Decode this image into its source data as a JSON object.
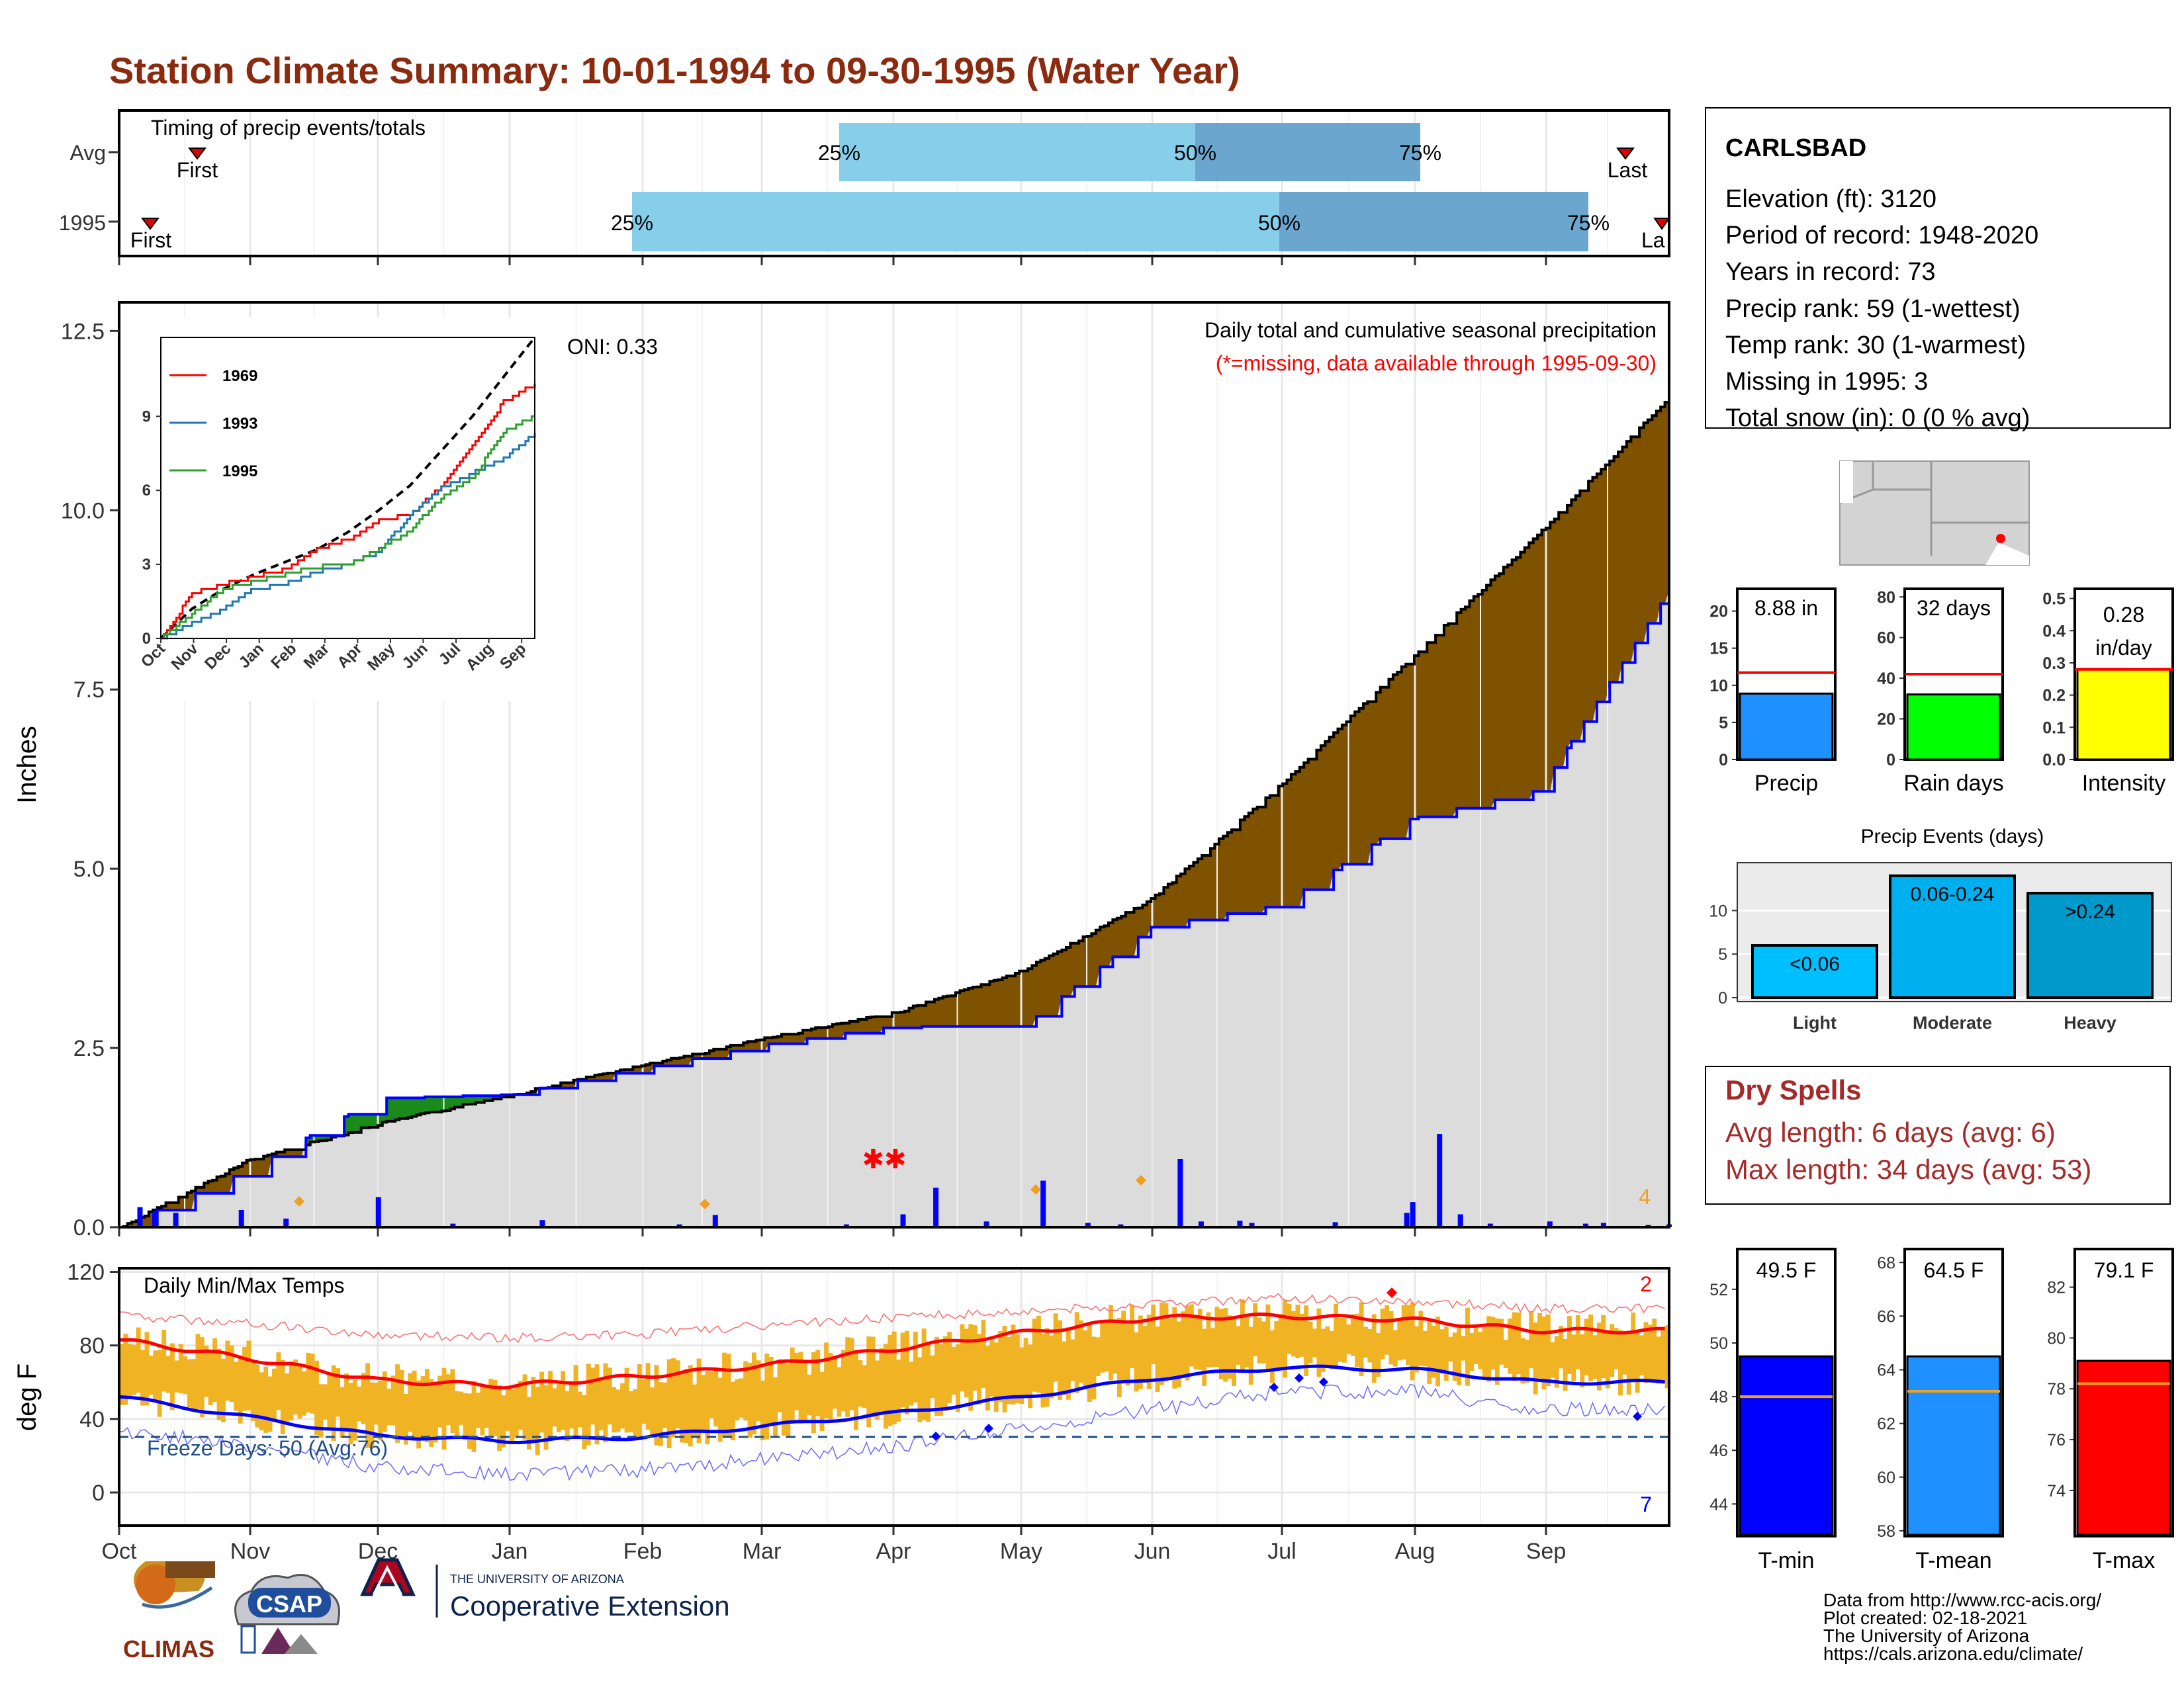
{
  "title": "Station Climate Summary: 10-01-1994 to 09-30-1995 (Water Year)",
  "colors": {
    "title": "#8b2a0e",
    "q_light": "#87ceeb",
    "q_dark": "#6ba6cf",
    "cumulative_fill": "#7f5200",
    "green_fill": "#1a8a1a",
    "avg_line": "#0000ff",
    "missing": "#ff0000",
    "temp_bar": "#f0b323",
    "max_line": "#ff0000",
    "min_line": "#0000ff",
    "freeze_line": "#1f4e8c",
    "dry_title": "#a52a2a"
  },
  "months": [
    "Oct",
    "Nov",
    "Dec",
    "Jan",
    "Feb",
    "Mar",
    "Apr",
    "May",
    "Jun",
    "Jul",
    "Aug",
    "Sep"
  ],
  "timing": {
    "label": "Timing of precip events/totals",
    "rows": [
      {
        "name": "Avg",
        "first": "First",
        "last": "Last",
        "q25": "25%",
        "q50": "50%",
        "q75": "75%"
      },
      {
        "name": "1995",
        "first": "First",
        "last": "La",
        "q25": "25%",
        "q50": "50%",
        "q75": "75%"
      }
    ]
  },
  "precip_panel": {
    "ylabel": "Inches",
    "yticks": [
      "0.0",
      "2.5",
      "5.0",
      "7.5",
      "10.0",
      "12.5"
    ],
    "oni": "ONI: 0.33",
    "note1": "Daily total and cumulative seasonal precipitation",
    "note2": "(*=missing, data available through 1995-09-30)",
    "count_label": "4"
  },
  "inset": {
    "yticks": [
      "0",
      "3",
      "6",
      "9"
    ],
    "months": [
      "Oct",
      "Nov",
      "Dec",
      "Jan",
      "Feb",
      "Mar",
      "Apr",
      "May",
      "Jun",
      "Jul",
      "Aug",
      "Sep"
    ],
    "legend": [
      {
        "name": "1969",
        "color": "#ff0000"
      },
      {
        "name": "1993",
        "color": "#1f77b4"
      },
      {
        "name": "1995",
        "color": "#2ca02c"
      }
    ]
  },
  "temp_panel": {
    "ylabel": "deg F",
    "label": "Daily Min/Max Temps",
    "yticks": [
      "0",
      "40",
      "80",
      "120"
    ],
    "freeze": "Freeze Days: 50 (Avg:76)",
    "count_max": "2",
    "count_min": "7"
  },
  "station": {
    "name": "CARLSBAD",
    "lines": [
      "Elevation (ft): 3120",
      "Period of record: 1948-2020",
      "Years in record: 73",
      "Precip rank: 59 (1-wettest)",
      "Temp rank: 30 (1-warmest)",
      "Missing in 1995: 3",
      "Total snow (in): 0 (0 % avg)"
    ]
  },
  "stat_bars": [
    {
      "label": "Precip",
      "value_text": "8.88 in",
      "value": 8.88,
      "avg": 11.7,
      "ymax": 23,
      "ticks": [
        "0",
        "5",
        "10",
        "15",
        "20"
      ],
      "tickvals": [
        0,
        5,
        10,
        15,
        20
      ],
      "color": "#1e90ff"
    },
    {
      "label": "Rain days",
      "value_text": "32 days",
      "value": 32,
      "avg": 42,
      "ymax": 84,
      "ticks": [
        "0",
        "20",
        "40",
        "60",
        "80"
      ],
      "tickvals": [
        0,
        20,
        40,
        60,
        80
      ],
      "color": "#00ff00"
    },
    {
      "label": "Intensity",
      "value_text": "0.28 in/day",
      "value": 0.28,
      "avg": 0.28,
      "ymax": 0.53,
      "ticks": [
        "0.0",
        "0.1",
        "0.2",
        "0.3",
        "0.4",
        "0.5"
      ],
      "tickvals": [
        0,
        0.1,
        0.2,
        0.3,
        0.4,
        0.5
      ],
      "color": "#ffff00"
    }
  ],
  "events": {
    "title": "Precip Events (days)",
    "yticks": [
      "0",
      "5",
      "10"
    ],
    "bars": [
      {
        "label": "Light",
        "range": "<0.06",
        "value": 6,
        "color": "#00bfff"
      },
      {
        "label": "Moderate",
        "range": "0.06-0.24",
        "value": 14,
        "color": "#00b0ee"
      },
      {
        "label": "Heavy",
        "range": ">0.24",
        "value": 12,
        "color": "#0099cc"
      }
    ]
  },
  "dry": {
    "title": "Dry Spells",
    "avg": "Avg length: 6 days (avg: 6)",
    "max": "Max length: 34 days (avg: 53)"
  },
  "temp_bars": [
    {
      "label": "T-min",
      "value_text": "49.5 F",
      "value": 49.5,
      "avg": 48.0,
      "ymin": 42.8,
      "ymax": 53.5,
      "ticks": [
        "44",
        "46",
        "48",
        "50",
        "52"
      ],
      "tickvals": [
        44,
        46,
        48,
        50,
        52
      ],
      "color": "#0000ff"
    },
    {
      "label": "T-mean",
      "value_text": "64.5 F",
      "value": 64.5,
      "avg": 63.2,
      "ymin": 57.8,
      "ymax": 68.5,
      "ticks": [
        "58",
        "60",
        "62",
        "64",
        "66",
        "68"
      ],
      "tickvals": [
        58,
        60,
        62,
        64,
        66,
        68
      ],
      "color": "#1e90ff"
    },
    {
      "label": "T-max",
      "value_text": "79.1 F",
      "value": 79.1,
      "avg": 78.2,
      "ymin": 72.2,
      "ymax": 83.5,
      "ticks": [
        "74",
        "76",
        "78",
        "80",
        "82"
      ],
      "tickvals": [
        74,
        76,
        78,
        80,
        82
      ],
      "color": "#ff0000"
    }
  ],
  "footer": {
    "lines": [
      "Data from http://www.rcc-acis.org/",
      "Plot created: 02-18-2021",
      "The University of Arizona",
      "https://cals.arizona.edu/climate/"
    ],
    "climas": "CLIMAS",
    "csap": "CSAP",
    "ua_small": "THE UNIVERSITY OF ARIZONA",
    "ua_big": "Cooperative Extension"
  },
  "chart_data": [
    {
      "type": "area",
      "name": "cumulative-precip",
      "x": [
        "Oct",
        "Nov",
        "Dec",
        "Jan",
        "Feb",
        "Mar",
        "Apr",
        "May",
        "Jun",
        "Jul",
        "Aug",
        "Sep",
        "Sep-end"
      ],
      "series": [
        {
          "values": [
            0.0,
            0.95,
            1.45,
            1.85,
            2.25,
            2.65,
            3.0,
            3.6,
            4.6,
            6.2,
            7.95,
            9.7,
            11.6
          ]
        },
        {
          "values": [
            0.0,
            0.8,
            1.8,
            1.85,
            2.2,
            2.55,
            2.8,
            2.8,
            4.2,
            4.5,
            5.7,
            6.1,
            8.88
          ]
        }
      ],
      "ylim": [
        0,
        12.9
      ]
    },
    {
      "type": "bar",
      "name": "daily-precip",
      "x": [
        7,
        12,
        19,
        41,
        56,
        87,
        112,
        142,
        188,
        200,
        244,
        263,
        274,
        291,
        310,
        325,
        336,
        356,
        363,
        376,
        380,
        408,
        432,
        434,
        443,
        450,
        460,
        480,
        492,
        498,
        513,
        520
      ],
      "values": [
        0.28,
        0.22,
        0.2,
        0.24,
        0.12,
        0.42,
        0.05,
        0.1,
        0.04,
        0.17,
        0.04,
        0.18,
        0.55,
        0.08,
        0.65,
        0.06,
        0.04,
        0.95,
        0.08,
        0.09,
        0.06,
        0.07,
        0.2,
        0.35,
        1.3,
        0.18,
        0.05,
        0.08,
        0.05,
        0.06,
        0.03,
        0.04
      ],
      "ylim": [
        0,
        12.9
      ]
    },
    {
      "type": "line",
      "name": "inset-cumulative",
      "x": [
        "Oct",
        "Nov",
        "Dec",
        "Jan",
        "Feb",
        "Mar",
        "Apr",
        "May",
        "Jun",
        "Jul",
        "Aug",
        "Sep",
        "Sep-end"
      ],
      "series": [
        {
          "values": [
            0,
            1.2,
            2.0,
            2.6,
            3.1,
            3.6,
            4.3,
            5.2,
            6.2,
            7.6,
            9.0,
            10.6,
            12.2
          ]
        },
        {
          "values": [
            0,
            1.8,
            2.2,
            2.5,
            2.8,
            3.6,
            4.0,
            4.8,
            5.0,
            6.2,
            7.8,
            9.6,
            10.3
          ]
        },
        {
          "values": [
            0,
            0.6,
            1.2,
            2.0,
            2.2,
            2.7,
            3.0,
            3.5,
            5.0,
            6.1,
            6.7,
            7.3,
            8.3
          ]
        },
        {
          "values": [
            0,
            1.0,
            2.0,
            2.3,
            2.6,
            2.9,
            3.0,
            3.6,
            4.4,
            5.7,
            6.5,
            8.4,
            9.0
          ]
        }
      ],
      "ylim": [
        0,
        12
      ]
    },
    {
      "type": "line",
      "name": "daily-temps",
      "x": [
        "Oct",
        "Nov",
        "Dec",
        "Jan",
        "Feb",
        "Mar",
        "Apr",
        "May",
        "Jun",
        "Jul",
        "Aug",
        "Sep"
      ],
      "series": [
        {
          "values": [
            83,
            73,
            61,
            58,
            63,
            69,
            78,
            87,
            95,
            96,
            94,
            88
          ]
        },
        {
          "values": [
            52,
            41,
            31,
            28,
            30,
            36,
            43,
            52,
            62,
            68,
            67,
            60
          ]
        },
        {
          "values": [
            96,
            92,
            86,
            84,
            86,
            91,
            95,
            99,
            102,
            106,
            104,
            100
          ]
        },
        {
          "values": [
            34,
            26,
            14,
            10,
            12,
            18,
            25,
            35,
            45,
            55,
            55,
            45
          ]
        }
      ],
      "ylim": [
        -18,
        122
      ]
    }
  ]
}
